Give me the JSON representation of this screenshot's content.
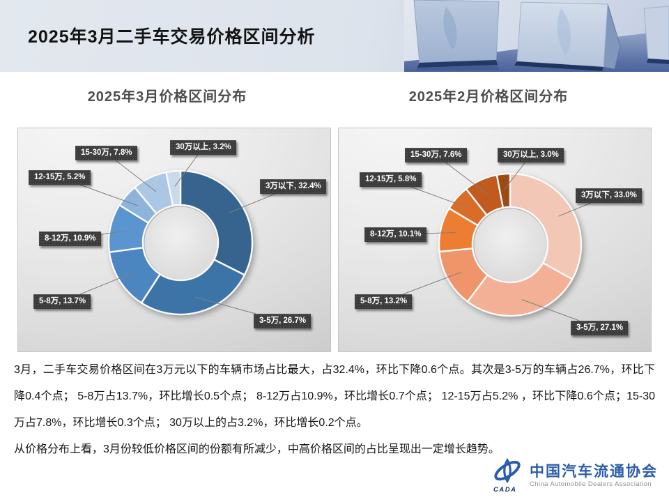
{
  "header": {
    "title": "2025年3月二手车交易价格区间分析"
  },
  "chart_data": [
    {
      "type": "pie",
      "subtype": "donut",
      "title": "2025年3月价格区间分布",
      "categories": [
        "3万以下",
        "3-5万",
        "5-8万",
        "8-12万",
        "12-15万",
        "15-30万",
        "30万以上"
      ],
      "values": [
        32.4,
        26.7,
        13.7,
        10.9,
        5.2,
        7.8,
        3.2
      ],
      "unit": "%",
      "colors": [
        "#36648f",
        "#3d74a8",
        "#4c86c0",
        "#5b95d0",
        "#8fb4dc",
        "#abc7e6",
        "#c9daee"
      ],
      "label_format": "{category}, {value}%",
      "legend_position": "callout-labels",
      "start_angle": "12-oclock-clockwise"
    },
    {
      "type": "pie",
      "subtype": "donut",
      "title": "2025年2月价格区间分布",
      "categories": [
        "3万以下",
        "3-5万",
        "5-8万",
        "8-12万",
        "12-15万",
        "15-30万",
        "30万以上"
      ],
      "values": [
        33.0,
        27.1,
        13.2,
        10.1,
        5.8,
        7.6,
        3.0
      ],
      "unit": "%",
      "colors": [
        "#f2c7b6",
        "#f3b096",
        "#f0946a",
        "#ed7d31",
        "#d96d28",
        "#c05a1e",
        "#9c4a16"
      ],
      "label_format": "{category}, {value}%",
      "legend_position": "callout-labels",
      "start_angle": "12-oclock-clockwise"
    }
  ],
  "analysis": {
    "p1": "3月，二手车交易价格区间在3万元以下的车辆市场占比最大，占32.4%，环比下降0.6个点。其次是3-5万的车辆占26.7%，环比下降0.4个点； 5-8万占13.7%，环比增长0.5个点； 8-12万占10.9%，环比增长0.7个点； 12-15万占5.2% ，环比下降0.6个点；15-30万占7.8%，环比增长0.3个点； 30万以上的占3.2%，环比增长0.2个点。",
    "p2": "从价格分布上看，3月份较低价格区间的份额有所减少，中高价格区间的占比呈现出一定增长趋势。"
  },
  "logo": {
    "badge": "CADA",
    "name_cn": "中国汽车流通协会",
    "name_en": "China Automobile Dealers Association",
    "brand_color": "#2b5cab"
  }
}
